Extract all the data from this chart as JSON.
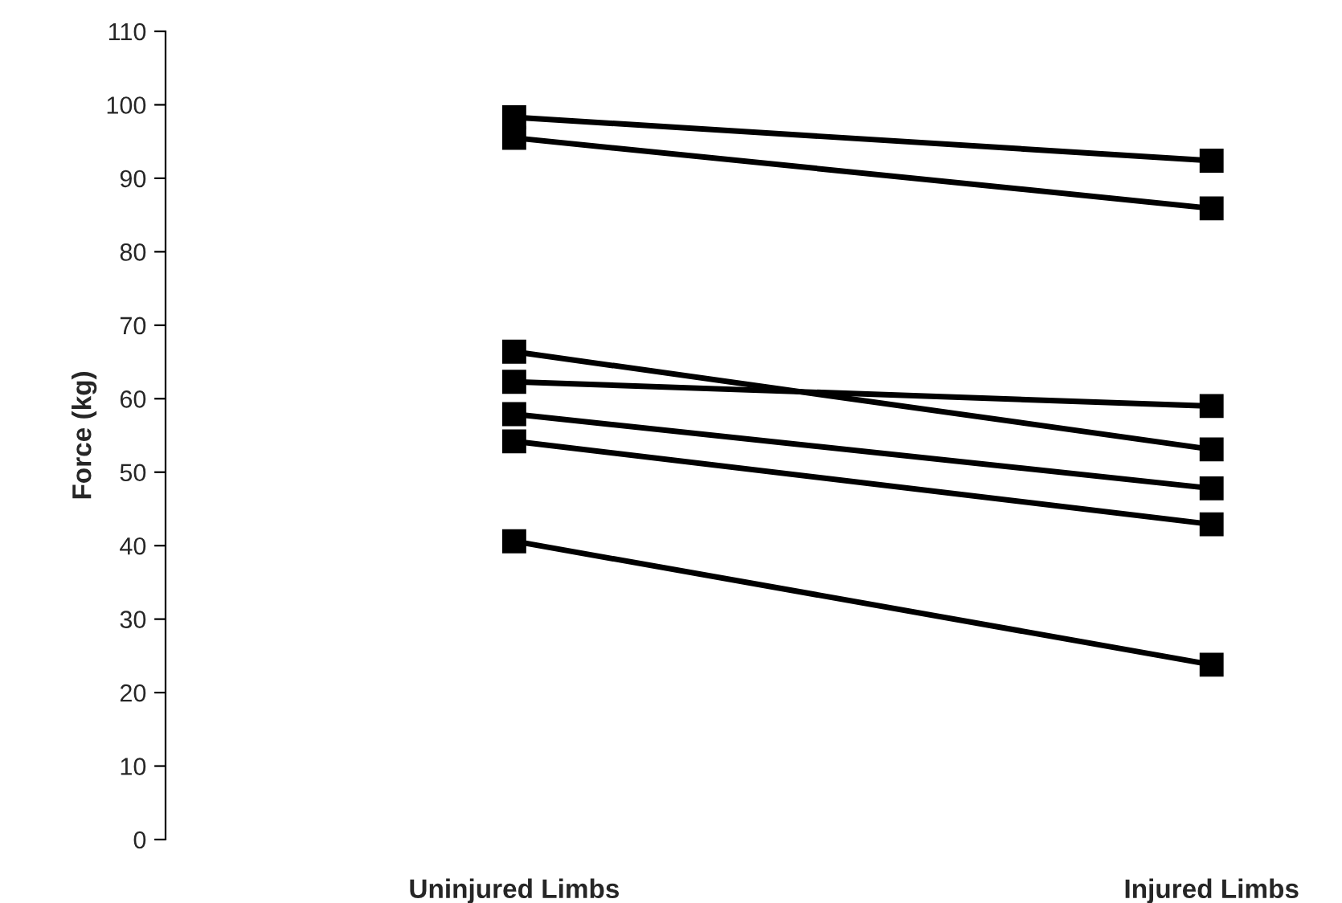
{
  "chart_data": {
    "type": "line",
    "ylabel": "Force (kg)",
    "categories": [
      "Uninjured Limbs",
      "Injured Limbs"
    ],
    "series": [
      {
        "color": "#000000",
        "values": [
          98.3,
          92.4
        ]
      },
      {
        "color": "#000000",
        "values": [
          95.5,
          85.9
        ]
      },
      {
        "color": "#000000",
        "values": [
          66.4,
          53.1
        ]
      },
      {
        "color": "#000000",
        "values": [
          62.3,
          59.0
        ]
      },
      {
        "color": "#000000",
        "values": [
          57.9,
          47.8
        ]
      },
      {
        "color": "#000000",
        "values": [
          54.2,
          42.9
        ]
      },
      {
        "color": "#000000",
        "values": [
          40.6,
          23.8
        ]
      }
    ],
    "ylim": [
      0,
      110
    ],
    "yticks": [
      0,
      10,
      20,
      30,
      40,
      50,
      60,
      70,
      80,
      90,
      100,
      110
    ],
    "marker": "square",
    "line_style": "solid",
    "grid": false,
    "legend": false
  }
}
